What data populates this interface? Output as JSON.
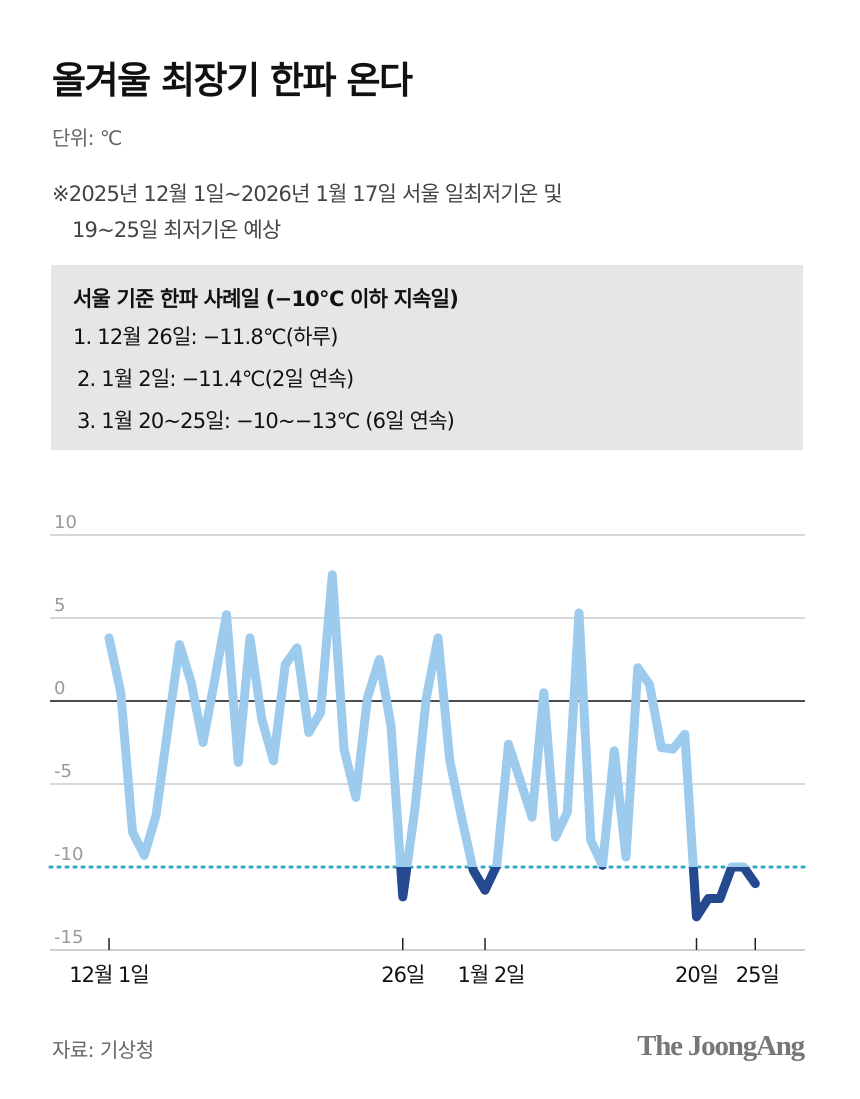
{
  "title": "올겨울 최장기 한파 온다",
  "unit": "단위: ℃",
  "notes": [
    "※2025년 12월 1일~2026년 1월 17일 서울 일최저기온 및",
    "19~25일 최저기온 예상"
  ],
  "info_box": {
    "title": "서울 기준 한파 사례일 (−10℃ 이하 지속일)",
    "items": [
      "1. 12월 26일: −11.8℃(하루)",
      "2. 1월 2일: −11.4℃(2일 연속)",
      "3. 1월 20~25일: −10~−13℃ (6일 연속)"
    ]
  },
  "source": "자료: 기상청",
  "logo": "The JoongAng",
  "colors": {
    "line": "#9dcbee",
    "cold_wave": "#24498f",
    "threshold": "#2ba6c2",
    "grid": "#cccccc",
    "zero": "#111111"
  },
  "chart_data": {
    "type": "line",
    "title": "",
    "xlabel": "",
    "ylabel": "",
    "ylim": [
      -15,
      10
    ],
    "yticks": [
      "10",
      "5",
      "0",
      "-5",
      "-10",
      "-15"
    ],
    "ytick_values": [
      10,
      5,
      0,
      -5,
      -10,
      -15
    ],
    "xticks": [
      {
        "date": "2025-12-01",
        "label": "12월 1일"
      },
      {
        "date": "2025-12-26",
        "label": "26일"
      },
      {
        "date": "2026-01-02",
        "label": "1월 2일"
      },
      {
        "date": "2026-01-20",
        "label": "20일"
      },
      {
        "date": "2026-01-25",
        "label": "25일"
      }
    ],
    "threshold": -10,
    "grid": true,
    "start_date": "2025-12-01",
    "values": [
      3.8,
      0.5,
      -7.9,
      -9.3,
      -6.9,
      -1.7,
      3.4,
      1.1,
      -2.5,
      1.3,
      5.2,
      -3.7,
      3.8,
      -1.1,
      -3.6,
      2.2,
      3.2,
      -1.9,
      -0.7,
      7.6,
      -2.9,
      -5.8,
      0.2,
      2.5,
      -1.5,
      -11.8,
      -6.7,
      0.2,
      3.8,
      -3.6,
      -7.0,
      -10.2,
      -11.4,
      -9.9,
      -2.6,
      -4.8,
      -7.0,
      0.5,
      -8.2,
      -6.7,
      5.3,
      -8.4,
      -9.9,
      -3.0,
      -9.4,
      2.0,
      1.0,
      -2.8,
      -2.9,
      -2.0,
      -13.0,
      -11.9,
      -11.9,
      -10.0,
      -10.0,
      -11.0
    ]
  }
}
